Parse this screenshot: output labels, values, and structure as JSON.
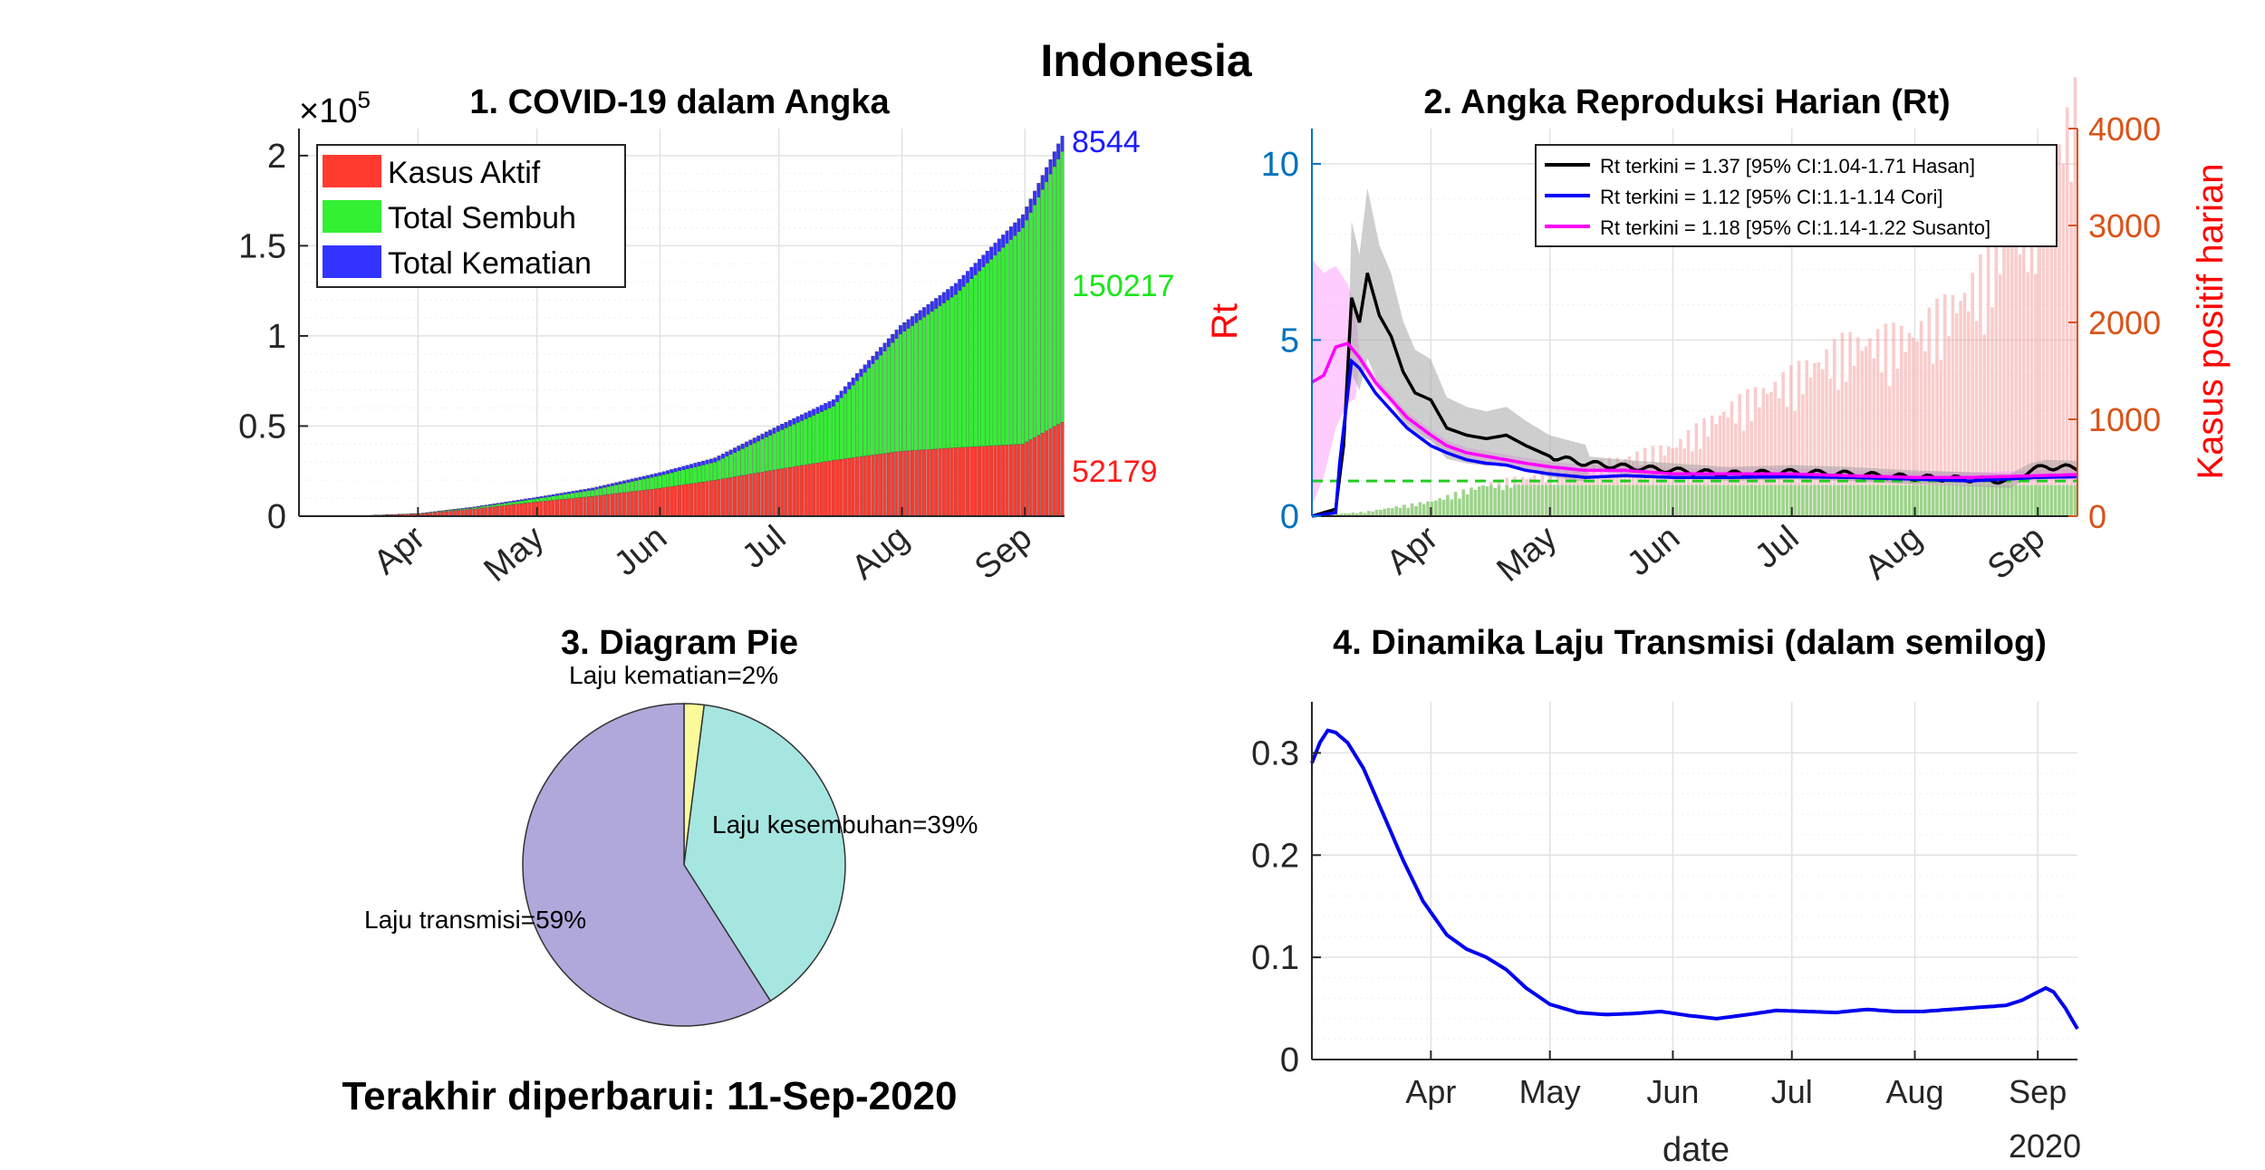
{
  "main_title": "Indonesia",
  "updated_text": "Terakhir diperbarui: 11-Sep-2020",
  "colors": {
    "aktif": "#ff3b30",
    "sembuh": "#33f033",
    "kematian": "#3333ff",
    "aktif_label": "#ff1a1a",
    "sembuh_label": "#19e619",
    "kematian_label": "#1a1aff",
    "hasan": "#000000",
    "cori": "#0000ff",
    "susanto": "#ff00ff",
    "rt_axis_label": "#ff0000",
    "rt_left_ticks": "#0072bd",
    "rt_right_ticks": "#d95319",
    "rt_right_label": "#ff0000",
    "pie_transmisi": "#b0a8db",
    "pie_sembuh": "#a6e6e1",
    "pie_kematian": "#fafa9a",
    "semilog_line": "#0000ee"
  },
  "chart_data": [
    {
      "id": "cases",
      "type": "bar",
      "title": "1. COVID-19 dalam Angka",
      "y_exponent_label": "×10",
      "y_exponent_power": "5",
      "ylim": [
        0,
        2.15
      ],
      "y_ticks": [
        0,
        0.5,
        1,
        1.5,
        2
      ],
      "y_tick_labels": [
        "0",
        "0.5",
        "1",
        "1.5",
        "2"
      ],
      "x_month_labels": [
        "Apr",
        "May",
        "Jun",
        "Jul",
        "Aug",
        "Sep"
      ],
      "x_start_date": "2020-03-02",
      "x_end_date": "2020-09-11",
      "grid": true,
      "legend_position": "top-left",
      "series": [
        {
          "name": "Kasus Aktif",
          "key": "aktif",
          "points": [
            [
              "2020-03-02",
              0
            ],
            [
              "2020-03-15",
              0.001
            ],
            [
              "2020-04-01",
              0.013
            ],
            [
              "2020-04-15",
              0.04
            ],
            [
              "2020-05-01",
              0.08
            ],
            [
              "2020-05-15",
              0.11
            ],
            [
              "2020-06-01",
              0.155
            ],
            [
              "2020-06-15",
              0.2
            ],
            [
              "2020-07-01",
              0.26
            ],
            [
              "2020-07-15",
              0.31
            ],
            [
              "2020-08-01",
              0.36
            ],
            [
              "2020-08-15",
              0.38
            ],
            [
              "2020-09-01",
              0.4
            ],
            [
              "2020-09-11",
              0.52179
            ]
          ]
        },
        {
          "name": "Total Sembuh",
          "key": "sembuh",
          "points": [
            [
              "2020-03-02",
              0
            ],
            [
              "2020-03-15",
              0
            ],
            [
              "2020-04-01",
              0.001
            ],
            [
              "2020-04-15",
              0.007
            ],
            [
              "2020-05-01",
              0.018
            ],
            [
              "2020-05-15",
              0.035
            ],
            [
              "2020-06-01",
              0.07
            ],
            [
              "2020-06-15",
              0.1
            ],
            [
              "2020-07-01",
              0.21
            ],
            [
              "2020-07-15",
              0.3
            ],
            [
              "2020-08-01",
              0.65
            ],
            [
              "2020-08-15",
              0.85
            ],
            [
              "2020-09-01",
              1.2
            ],
            [
              "2020-09-11",
              1.50217
            ]
          ]
        },
        {
          "name": "Total Kematian",
          "key": "kematian",
          "points": [
            [
              "2020-03-02",
              0
            ],
            [
              "2020-03-15",
              0
            ],
            [
              "2020-04-01",
              0.001
            ],
            [
              "2020-04-15",
              0.005
            ],
            [
              "2020-05-01",
              0.008
            ],
            [
              "2020-05-15",
              0.012
            ],
            [
              "2020-06-01",
              0.017
            ],
            [
              "2020-06-15",
              0.024
            ],
            [
              "2020-07-01",
              0.031
            ],
            [
              "2020-07-15",
              0.037
            ],
            [
              "2020-08-01",
              0.048
            ],
            [
              "2020-08-15",
              0.062
            ],
            [
              "2020-09-01",
              0.073
            ],
            [
              "2020-09-11",
              0.08544
            ]
          ]
        }
      ],
      "end_labels": {
        "kematian": "8544",
        "sembuh": "150217",
        "aktif": "52179"
      }
    },
    {
      "id": "rt",
      "type": "line",
      "title": "2. Angka Reproduksi Harian (Rt)",
      "ylabel": "Rt",
      "ylabel_right": "Kasus positif harian",
      "ylim": [
        0,
        11
      ],
      "y_ticks": [
        0,
        5,
        10
      ],
      "y_tick_labels": [
        "0",
        "5",
        "10"
      ],
      "ylim_right": [
        0,
        4000
      ],
      "y_right_ticks": [
        0,
        1000,
        2000,
        3000,
        4000
      ],
      "y_right_tick_labels": [
        "0",
        "1000",
        "2000",
        "3000",
        "4000"
      ],
      "x_month_labels": [
        "Apr",
        "May",
        "Jun",
        "Jul",
        "Aug",
        "Sep"
      ],
      "x_start_date": "2020-03-02",
      "x_end_date": "2020-09-11",
      "grid": true,
      "legend_position": "top-right",
      "reference_line": 1,
      "series": [
        {
          "name": "Rt terkini = 1.37 [95% CI:1.04-1.71 Hasan]",
          "key": "hasan",
          "points": [
            [
              "2020-03-02",
              0
            ],
            [
              "2020-03-08",
              0.2
            ],
            [
              "2020-03-10",
              2
            ],
            [
              "2020-03-12",
              6.2
            ],
            [
              "2020-03-14",
              5.5
            ],
            [
              "2020-03-16",
              6.9
            ],
            [
              "2020-03-19",
              5.7
            ],
            [
              "2020-03-22",
              5.1
            ],
            [
              "2020-03-25",
              4.1
            ],
            [
              "2020-03-28",
              3.5
            ],
            [
              "2020-04-01",
              3.3
            ],
            [
              "2020-04-05",
              2.5
            ],
            [
              "2020-04-10",
              2.3
            ],
            [
              "2020-04-15",
              2.2
            ],
            [
              "2020-04-20",
              2.3
            ],
            [
              "2020-04-25",
              2.0
            ],
            [
              "2020-05-01",
              1.7
            ],
            [
              "2020-05-10",
              1.5
            ],
            [
              "2020-05-20",
              1.4
            ],
            [
              "2020-06-01",
              1.3
            ],
            [
              "2020-06-15",
              1.2
            ],
            [
              "2020-07-01",
              1.25
            ],
            [
              "2020-07-15",
              1.2
            ],
            [
              "2020-08-01",
              1.1
            ],
            [
              "2020-08-15",
              1.05
            ],
            [
              "2020-08-25",
              1.0
            ],
            [
              "2020-08-30",
              1.3
            ],
            [
              "2020-09-03",
              1.4
            ],
            [
              "2020-09-11",
              1.37
            ]
          ]
        },
        {
          "name": "Rt terkini = 1.12 [95% CI:1.1-1.14 Cori]",
          "key": "cori",
          "points": [
            [
              "2020-03-02",
              0
            ],
            [
              "2020-03-08",
              0.1
            ],
            [
              "2020-03-09",
              1.5
            ],
            [
              "2020-03-12",
              4.4
            ],
            [
              "2020-03-14",
              4.2
            ],
            [
              "2020-03-18",
              3.5
            ],
            [
              "2020-03-22",
              3.0
            ],
            [
              "2020-03-26",
              2.5
            ],
            [
              "2020-04-01",
              2.0
            ],
            [
              "2020-04-05",
              1.8
            ],
            [
              "2020-04-10",
              1.6
            ],
            [
              "2020-04-15",
              1.5
            ],
            [
              "2020-04-20",
              1.45
            ],
            [
              "2020-04-25",
              1.3
            ],
            [
              "2020-05-01",
              1.2
            ],
            [
              "2020-05-10",
              1.1
            ],
            [
              "2020-05-20",
              1.15
            ],
            [
              "2020-06-01",
              1.1
            ],
            [
              "2020-06-15",
              1.1
            ],
            [
              "2020-07-01",
              1.12
            ],
            [
              "2020-07-15",
              1.1
            ],
            [
              "2020-08-01",
              1.05
            ],
            [
              "2020-08-15",
              1.0
            ],
            [
              "2020-09-01",
              1.1
            ],
            [
              "2020-09-11",
              1.12
            ]
          ]
        },
        {
          "name": "Rt terkini = 1.18 [95% CI:1.14-1.22 Susanto]",
          "key": "susanto",
          "points": [
            [
              "2020-03-02",
              3.8
            ],
            [
              "2020-03-05",
              4.0
            ],
            [
              "2020-03-08",
              4.8
            ],
            [
              "2020-03-11",
              4.9
            ],
            [
              "2020-03-14",
              4.5
            ],
            [
              "2020-03-18",
              3.8
            ],
            [
              "2020-03-22",
              3.3
            ],
            [
              "2020-03-26",
              2.8
            ],
            [
              "2020-04-01",
              2.3
            ],
            [
              "2020-04-05",
              2.0
            ],
            [
              "2020-04-10",
              1.8
            ],
            [
              "2020-04-15",
              1.7
            ],
            [
              "2020-04-20",
              1.6
            ],
            [
              "2020-04-25",
              1.5
            ],
            [
              "2020-05-01",
              1.4
            ],
            [
              "2020-05-10",
              1.3
            ],
            [
              "2020-05-20",
              1.3
            ],
            [
              "2020-06-01",
              1.2
            ],
            [
              "2020-06-15",
              1.2
            ],
            [
              "2020-07-01",
              1.2
            ],
            [
              "2020-07-15",
              1.15
            ],
            [
              "2020-08-01",
              1.1
            ],
            [
              "2020-08-15",
              1.1
            ],
            [
              "2020-09-01",
              1.15
            ],
            [
              "2020-09-11",
              1.18
            ]
          ]
        }
      ],
      "daily_cases_note": "Kasus positif harian (right axis)",
      "daily_cases": [
        [
          "2020-03-02",
          5
        ],
        [
          "2020-03-15",
          40
        ],
        [
          "2020-04-01",
          140
        ],
        [
          "2020-04-15",
          300
        ],
        [
          "2020-05-01",
          400
        ],
        [
          "2020-05-15",
          500
        ],
        [
          "2020-06-01",
          650
        ],
        [
          "2020-06-15",
          1000
        ],
        [
          "2020-07-01",
          1300
        ],
        [
          "2020-07-15",
          1600
        ],
        [
          "2020-08-01",
          1700
        ],
        [
          "2020-08-15",
          2100
        ],
        [
          "2020-09-01",
          3000
        ],
        [
          "2020-09-11",
          3800
        ]
      ]
    },
    {
      "id": "pie",
      "type": "pie",
      "title": "3. Diagram Pie",
      "slices": [
        {
          "label": "Laju kematian=2%",
          "value": 2,
          "key": "pie_kematian"
        },
        {
          "label": "Laju kesembuhan=39%",
          "value": 39,
          "key": "pie_sembuh"
        },
        {
          "label": "Laju transmisi=59%",
          "value": 59,
          "key": "pie_transmisi"
        }
      ]
    },
    {
      "id": "semilog",
      "type": "line",
      "title": "4. Dinamika Laju Transmisi (dalam semilog)",
      "xlabel": "date",
      "x_year_label": "2020",
      "ylim": [
        0,
        0.35
      ],
      "y_ticks": [
        0,
        0.1,
        0.2,
        0.3
      ],
      "y_tick_labels": [
        "0",
        "0.1",
        "0.2",
        "0.3"
      ],
      "x_month_labels": [
        "Apr",
        "May",
        "Jun",
        "Jul",
        "Aug",
        "Sep"
      ],
      "x_start_date": "2020-03-02",
      "x_end_date": "2020-09-11",
      "grid": true,
      "series": [
        {
          "name": "",
          "key": "semilog_line",
          "points": [
            [
              "2020-03-02",
              0.29
            ],
            [
              "2020-03-04",
              0.31
            ],
            [
              "2020-03-06",
              0.322
            ],
            [
              "2020-03-08",
              0.32
            ],
            [
              "2020-03-11",
              0.31
            ],
            [
              "2020-03-15",
              0.285
            ],
            [
              "2020-03-20",
              0.24
            ],
            [
              "2020-03-25",
              0.195
            ],
            [
              "2020-03-30",
              0.155
            ],
            [
              "2020-04-05",
              0.122
            ],
            [
              "2020-04-10",
              0.108
            ],
            [
              "2020-04-15",
              0.1
            ],
            [
              "2020-04-20",
              0.088
            ],
            [
              "2020-04-25",
              0.07
            ],
            [
              "2020-05-01",
              0.054
            ],
            [
              "2020-05-08",
              0.046
            ],
            [
              "2020-05-15",
              0.044
            ],
            [
              "2020-05-22",
              0.045
            ],
            [
              "2020-05-29",
              0.047
            ],
            [
              "2020-06-05",
              0.043
            ],
            [
              "2020-06-12",
              0.04
            ],
            [
              "2020-06-20",
              0.044
            ],
            [
              "2020-06-27",
              0.048
            ],
            [
              "2020-07-05",
              0.047
            ],
            [
              "2020-07-12",
              0.046
            ],
            [
              "2020-07-20",
              0.049
            ],
            [
              "2020-07-27",
              0.047
            ],
            [
              "2020-08-03",
              0.047
            ],
            [
              "2020-08-10",
              0.049
            ],
            [
              "2020-08-17",
              0.051
            ],
            [
              "2020-08-24",
              0.053
            ],
            [
              "2020-08-28",
              0.058
            ],
            [
              "2020-09-01",
              0.066
            ],
            [
              "2020-09-03",
              0.07
            ],
            [
              "2020-09-05",
              0.066
            ],
            [
              "2020-09-08",
              0.05
            ],
            [
              "2020-09-11",
              0.03
            ]
          ]
        }
      ]
    }
  ]
}
